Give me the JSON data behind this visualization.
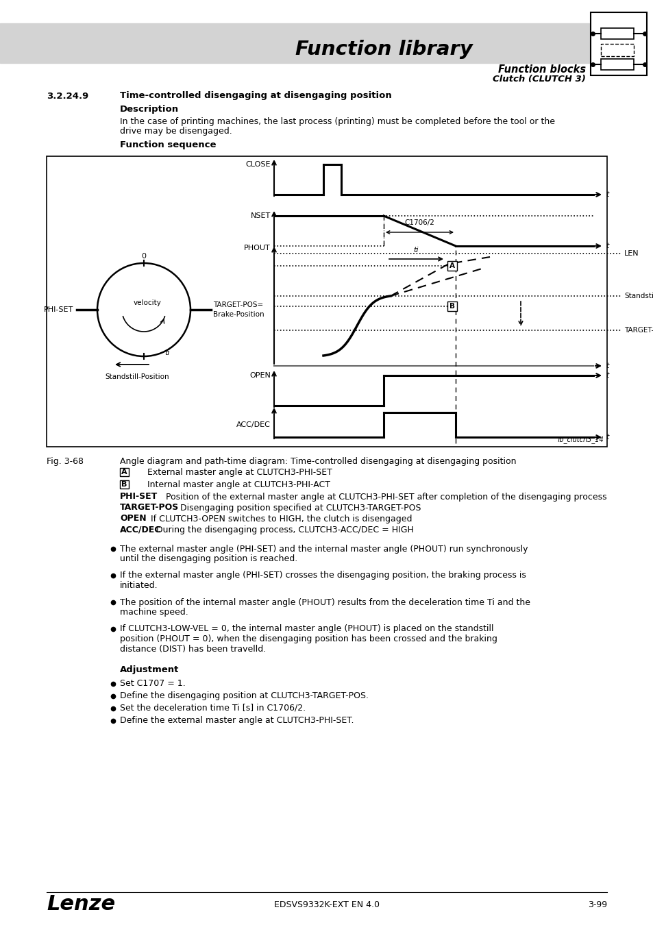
{
  "page_title": "Function library",
  "subtitle1": "Function blocks",
  "subtitle2": "Clutch (CLUTCH 3)",
  "section": "3.2.24.9",
  "section_title": "Time-controlled disengaging at disengaging position",
  "desc_heading": "Description",
  "desc_text1": "In the case of printing machines, the last process (printing) must be completed before the tool or the",
  "desc_text2": "drive may be disengaged.",
  "func_seq_heading": "Function sequence",
  "fig_label": "Fig. 3-68",
  "fig_caption": "Angle diagram and path-time diagram: Time-controlled disengaging at disengaging position",
  "legend_A": "External master angle at CLUTCH3-PHI-SET",
  "legend_B": "Internal master angle at CLUTCH3-PHI-ACT",
  "legend_PHISET_key": "PHI-SET",
  "legend_PHISET_val": "Position of the external master angle at CLUTCH3-PHI-SET after completion of the disengaging process",
  "legend_TARGETPOS_key": "TARGET-POS",
  "legend_TARGETPOS_val": "Disengaging position specified at CLUTCH3-TARGET-POS",
  "legend_OPEN_key": "OPEN",
  "legend_OPEN_val": "If CLUTCH3-OPEN switches to HIGH, the clutch is disengaged",
  "legend_ACCDEC_key": "ACC/DEC",
  "legend_ACCDEC_val": "During the disengaging process, CLUTCH3-ACC/DEC = HIGH",
  "bullet1a": "The external master angle (PHI-SET) and the internal master angle (PHOUT) run synchronously",
  "bullet1b": "until the disengaging position is reached.",
  "bullet2a": "If the external master angle (PHI-SET) crosses the disengaging position, the braking process is",
  "bullet2b": "initiated.",
  "bullet3a": "The position of the internal master angle (PHOUT) results from the deceleration time Ti and the",
  "bullet3b": "machine speed.",
  "bullet4a": "If CLUTCH3-LOW-VEL = 0, the internal master angle (PHOUT) is placed on the standstill",
  "bullet4b": "position (PHOUT = 0), when the disengaging position has been crossed and the braking",
  "bullet4c": "distance (DIST) has been travelld.",
  "adj_heading": "Adjustment",
  "adj1": "Set C1707 = 1.",
  "adj2": "Define the disengaging position at CLUTCH3-TARGET-POS.",
  "adj3": "Set the deceleration time Ti [s] in C1706/2.",
  "adj4": "Define the external master angle at CLUTCH3-PHI-SET.",
  "footer_left": "Lenze",
  "footer_center": "EDSVS9332K-EXT EN 4.0",
  "footer_right": "3-99",
  "bg_color": "#ffffff",
  "header_bg": "#d3d3d3"
}
